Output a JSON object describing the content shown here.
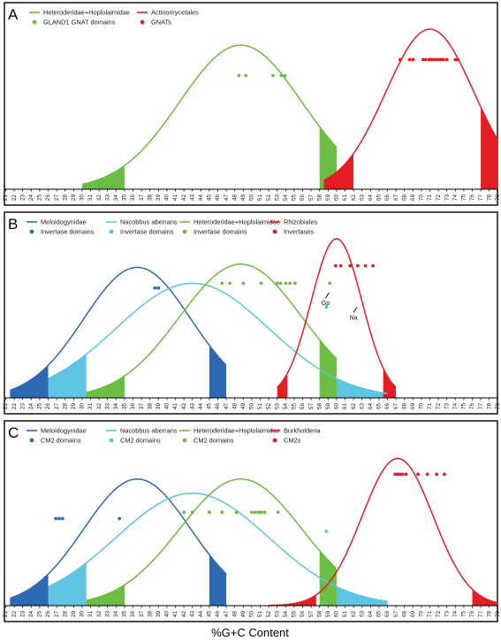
{
  "figure": {
    "x_axis_title": "%G+C Content"
  },
  "chart_data": [
    {
      "panel": "A",
      "type": "line",
      "x_ticks": [
        21,
        22,
        23,
        24,
        25,
        26,
        27,
        28,
        29,
        30,
        31,
        32,
        33,
        34,
        35,
        36,
        37,
        38,
        39,
        40,
        41,
        42,
        43,
        44,
        45,
        46,
        47,
        48,
        49,
        50,
        51,
        52,
        53,
        54,
        55,
        56,
        57,
        58,
        59,
        60,
        61,
        62,
        63,
        64,
        65,
        66,
        67,
        68,
        69,
        70,
        71,
        72,
        73,
        74,
        75,
        76,
        77,
        78,
        79
      ],
      "xlim": [
        21,
        79
      ],
      "ylim": [
        0,
        1
      ],
      "grid": false,
      "legend_position": "top-left",
      "series": [
        {
          "name": "Heteroderidae+Hoplolaimidae",
          "kind": "curve",
          "color": "#6bbd45",
          "mean": 48.7,
          "sd": 7.2,
          "peak": 0.9,
          "tails": [
            {
              "from": 30,
              "to": 35
            },
            {
              "from": 58,
              "to": 60
            }
          ]
        },
        {
          "name": "Actinomycetales",
          "kind": "curve",
          "color": "#e31e24",
          "mean": 71,
          "sd": 5.2,
          "peak": 1.0,
          "tails": [
            {
              "from": 58.5,
              "to": 62
            },
            {
              "from": 77,
              "to": 79
            }
          ]
        },
        {
          "name": "GLAND1 GNAT domains",
          "kind": "points",
          "color": "#6bbd45",
          "y": 0.71,
          "x": [
            48.5,
            49.3,
            52.5,
            53.5,
            53.9
          ]
        },
        {
          "name": "GNATs",
          "kind": "points",
          "color": "#e31e24",
          "y": 0.81,
          "x": [
            67.5,
            68.6,
            69,
            70.2,
            70.5,
            70.9,
            71.1,
            71.4,
            71.7,
            72.0,
            72.3,
            72.6,
            73.0,
            74.0,
            74.3
          ]
        }
      ],
      "annotations": []
    },
    {
      "panel": "B",
      "type": "line",
      "x_ticks": [
        21,
        22,
        23,
        24,
        25,
        26,
        27,
        28,
        29,
        30,
        31,
        32,
        33,
        34,
        35,
        36,
        37,
        38,
        39,
        40,
        41,
        42,
        43,
        44,
        45,
        46,
        47,
        48,
        49,
        50,
        51,
        52,
        53,
        54,
        55,
        56,
        57,
        58,
        59,
        60,
        61,
        62,
        63,
        64,
        65,
        66,
        67,
        68,
        69,
        70,
        71,
        72,
        73,
        74,
        75,
        76,
        77,
        78,
        79
      ],
      "xlim": [
        21,
        79
      ],
      "ylim": [
        0,
        1
      ],
      "grid": false,
      "legend_position": "top",
      "series": [
        {
          "name": "Meloidogynidae",
          "kind": "curve",
          "color": "#2c6ab3",
          "mean": 36.5,
          "sd": 6.3,
          "peak": 0.82,
          "tails": [
            {
              "from": 21.5,
              "to": 26
            },
            {
              "from": 45,
              "to": 47
            }
          ]
        },
        {
          "name": "Nacobbus aberrans",
          "kind": "curve",
          "color": "#5ec4e2",
          "mean": 43,
          "sd": 9.0,
          "peak": 0.72,
          "tails": [
            {
              "from": 26,
              "to": 30.5
            },
            {
              "from": 58.5,
              "to": 66
            }
          ]
        },
        {
          "name": "Heteroderidae+Hoplolaimidae",
          "kind": "curve",
          "color": "#6bbd45",
          "mean": 48.7,
          "sd": 7.2,
          "peak": 0.84,
          "tails": [
            {
              "from": 30.5,
              "to": 35
            },
            {
              "from": 58,
              "to": 60
            }
          ]
        },
        {
          "name": "Rhizobiales",
          "kind": "curve",
          "color": "#e31e24",
          "mean": 60,
          "sd": 3.0,
          "peak": 1.0,
          "tails": [
            {
              "from": 53,
              "to": 54.2
            },
            {
              "from": 65.5,
              "to": 67
            }
          ]
        },
        {
          "name": "Invertase domains",
          "kind": "points",
          "color": "#2c6ab3",
          "y": 0.69,
          "x": [
            38.6,
            39.0
          ]
        },
        {
          "name": "Invertase domains",
          "kind": "points",
          "color": "#5ec4e2",
          "y": 0.57,
          "x": [
            58.8
          ]
        },
        {
          "name": "Invertase domains",
          "kind": "points",
          "color": "#6bbd45",
          "y": 0.72,
          "x": [
            46.5,
            47.4,
            49.0,
            51.1,
            53.0,
            53.4,
            54.0,
            54.5,
            55.1,
            59.2
          ]
        },
        {
          "name": "Invertases",
          "kind": "points",
          "color": "#e31e24",
          "y": 0.83,
          "x": [
            59.9,
            60.5,
            61.6,
            62.5,
            63.4,
            64.3
          ]
        }
      ],
      "annotations": [
        {
          "text": "Gp",
          "x": 58.7,
          "y": 0.66
        },
        {
          "text": "Na",
          "x": 62.0,
          "y": 0.57
        }
      ]
    },
    {
      "panel": "C",
      "type": "line",
      "x_ticks": [
        21,
        22,
        23,
        24,
        25,
        26,
        27,
        28,
        29,
        30,
        31,
        32,
        33,
        34,
        35,
        36,
        37,
        38,
        39,
        40,
        41,
        42,
        43,
        44,
        45,
        46,
        47,
        48,
        49,
        50,
        51,
        52,
        53,
        54,
        55,
        56,
        57,
        58,
        59,
        60,
        61,
        62,
        63,
        64,
        65,
        66,
        67,
        68,
        69,
        70,
        71,
        72,
        73,
        74,
        75,
        76,
        77,
        78,
        79
      ],
      "xlim": [
        21,
        79
      ],
      "ylim": [
        0,
        1
      ],
      "grid": false,
      "legend_position": "top",
      "series": [
        {
          "name": "Meloidogynidae",
          "kind": "curve",
          "color": "#2c6ab3",
          "mean": 36.5,
          "sd": 6.3,
          "peak": 0.8,
          "tails": [
            {
              "from": 21.5,
              "to": 26
            },
            {
              "from": 45,
              "to": 47
            }
          ]
        },
        {
          "name": "Nacobbus aberrans",
          "kind": "curve",
          "color": "#5ec4e2",
          "mean": 43,
          "sd": 9.0,
          "peak": 0.71,
          "tails": [
            {
              "from": 26,
              "to": 30.5
            },
            {
              "from": 58.5,
              "to": 66
            }
          ]
        },
        {
          "name": "Heteroderidae+Hoplolaimidae",
          "kind": "curve",
          "color": "#6bbd45",
          "mean": 48.7,
          "sd": 7.2,
          "peak": 0.8,
          "tails": [
            {
              "from": 30.5,
              "to": 35
            },
            {
              "from": 58,
              "to": 60
            }
          ]
        },
        {
          "name": "Burkholderia",
          "kind": "curve",
          "color": "#e31e24",
          "mean": 67.2,
          "sd": 4.2,
          "peak": 0.93,
          "tails": [
            {
              "from": 52,
              "to": 57.6
            },
            {
              "from": 76,
              "to": 79
            }
          ]
        },
        {
          "name": "CM2 domains",
          "kind": "points",
          "color": "#2c6ab3",
          "y": 0.55,
          "x": [
            26.9,
            27.3,
            27.7,
            34.4
          ]
        },
        {
          "name": "CM2 domains",
          "kind": "points",
          "color": "#5ec4e2",
          "y": 0.47,
          "x": [
            58.8
          ]
        },
        {
          "name": "CM2 domains",
          "kind": "points",
          "color": "#6bbd45",
          "y": 0.59,
          "x": [
            42.0,
            43.0,
            45.0,
            46.5,
            48.2,
            50.0,
            50.4,
            50.8,
            51.1,
            51.5,
            53.1
          ]
        },
        {
          "name": "CM2s",
          "kind": "points",
          "color": "#e31e24",
          "y": 0.83,
          "x": [
            66.9,
            67.2,
            67.5,
            67.8,
            68.2,
            69.6,
            70.7,
            71.8,
            72.7
          ]
        }
      ],
      "annotations": []
    }
  ]
}
